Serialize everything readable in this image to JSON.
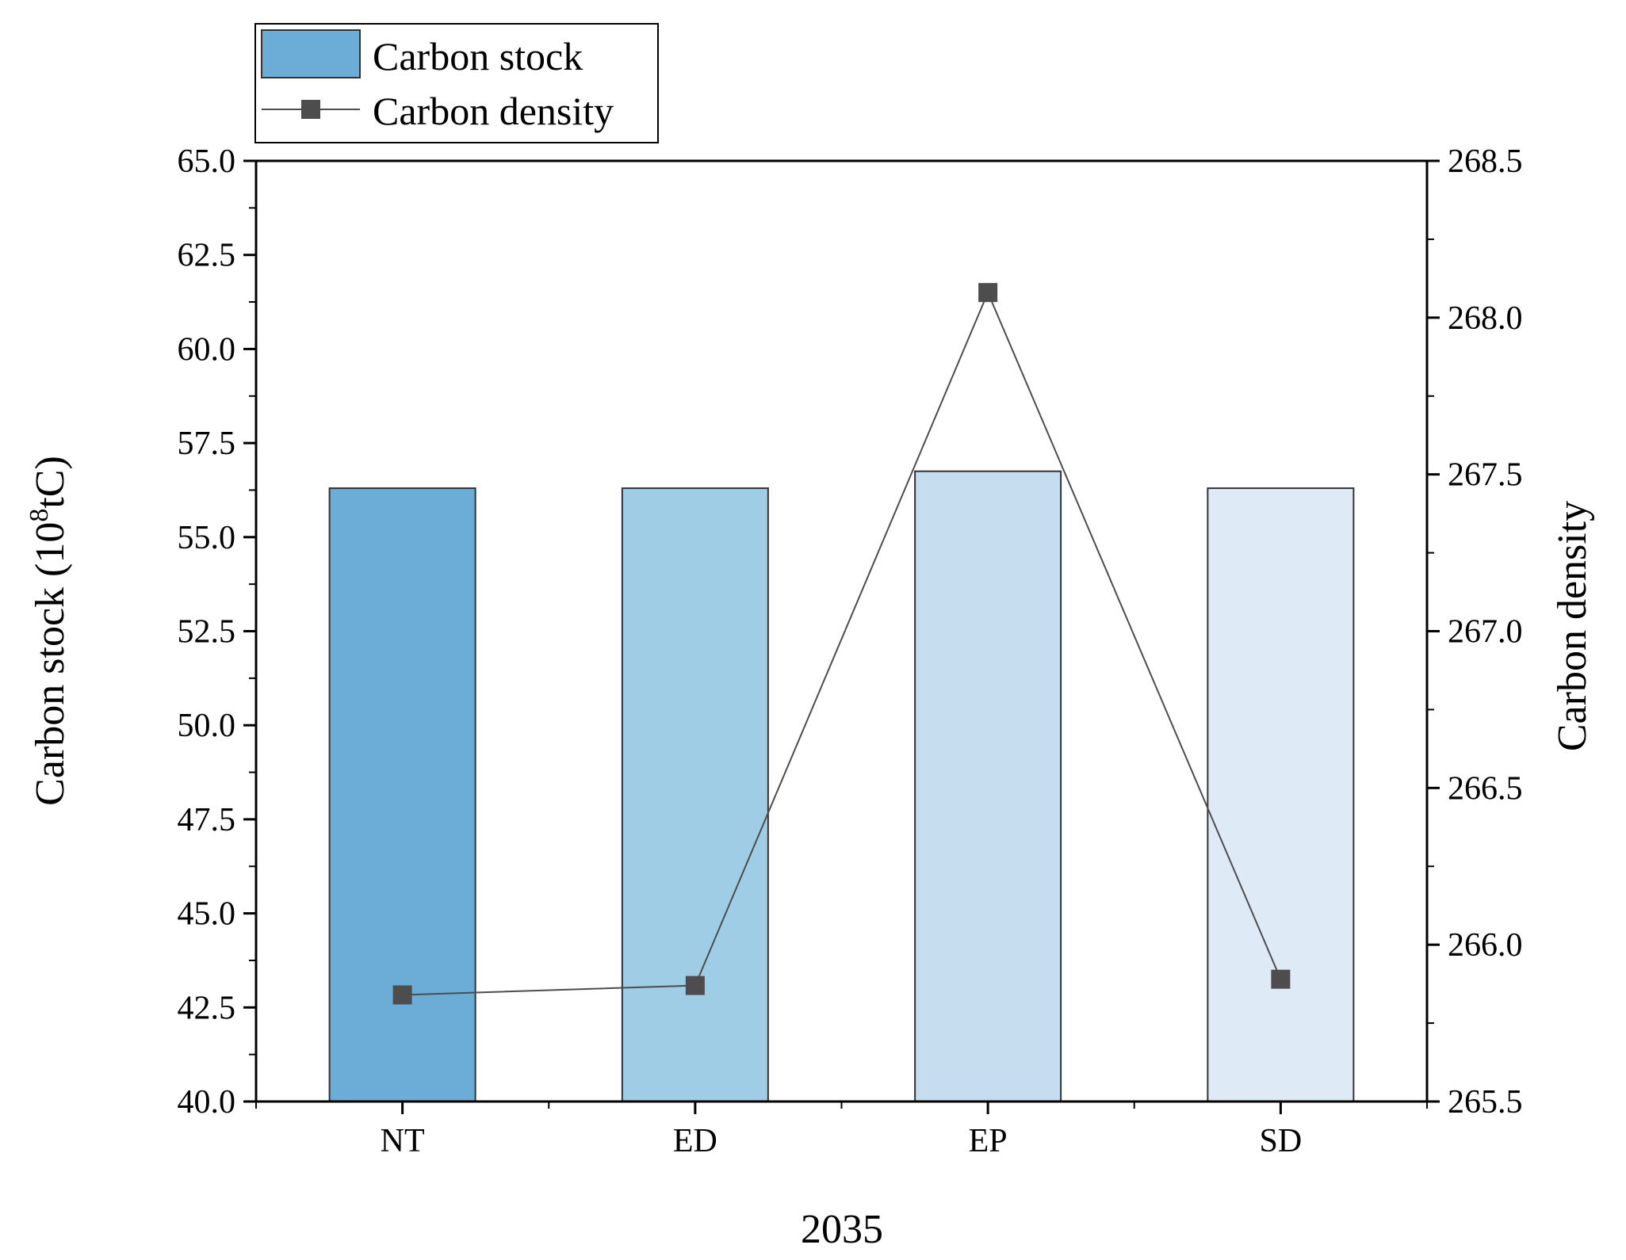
{
  "chart_data": {
    "type": "bar+line",
    "title": "",
    "xlabel": "2035",
    "ylabel": "Carbon stock (10^8tC)",
    "ylabel_parts": {
      "before": "Carbon stock (10",
      "sup": "8",
      "after": "tC)"
    },
    "y2label": "Carbon density",
    "categories": [
      "NT",
      "ED",
      "EP",
      "SD"
    ],
    "ylim": [
      40.0,
      65.0
    ],
    "y2lim": [
      265.5,
      268.5
    ],
    "yticks": [
      "40.0",
      "42.5",
      "45.0",
      "47.5",
      "50.0",
      "52.5",
      "55.0",
      "57.5",
      "60.0",
      "62.5",
      "65.0"
    ],
    "y2ticks": [
      "265.5",
      "266.0",
      "266.5",
      "267.0",
      "267.5",
      "268.0",
      "268.5"
    ],
    "grid": false,
    "legend_position": "top-left",
    "series": [
      {
        "name": "Carbon stock",
        "type": "bar",
        "axis": "left",
        "values": [
          56.3,
          56.3,
          56.75,
          56.3
        ],
        "colors": [
          "#6badd6",
          "#9ecde5",
          "#c6dcef",
          "#deebf7"
        ]
      },
      {
        "name": "Carbon density",
        "type": "line",
        "axis": "right",
        "marker": "square",
        "values": [
          265.84,
          265.87,
          268.08,
          265.89
        ],
        "color": "#4d4d4d"
      }
    ]
  }
}
